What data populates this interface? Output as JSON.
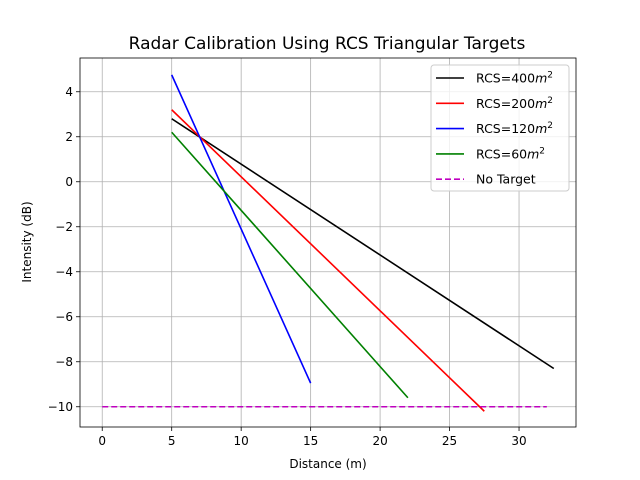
{
  "chart_data": {
    "type": "line",
    "title": "Radar Calibration Using RCS Triangular Targets",
    "xlabel": "Distance (m)",
    "ylabel": "Intensity (dB)",
    "xlim": [
      -1.6,
      34.1
    ],
    "ylim": [
      -10.9,
      5.5
    ],
    "xticks": [
      0,
      5,
      10,
      15,
      20,
      25,
      30
    ],
    "yticks": [
      4,
      2,
      0,
      -2,
      -4,
      -6,
      -8,
      -10
    ],
    "grid": true,
    "legend_position": "top-right",
    "series": [
      {
        "name": "RCS=400",
        "name_sup": "m",
        "name_exp": "2",
        "color": "#000000",
        "dash": "solid",
        "x": [
          5,
          32.5
        ],
        "y": [
          2.8,
          -8.3
        ]
      },
      {
        "name": "RCS=200",
        "name_sup": "m",
        "name_exp": "2",
        "color": "#ff0000",
        "dash": "solid",
        "x": [
          5,
          27.5
        ],
        "y": [
          3.2,
          -10.2
        ]
      },
      {
        "name": "RCS=120",
        "name_sup": "m",
        "name_exp": "2",
        "color": "#0000ff",
        "dash": "solid",
        "x": [
          5,
          15
        ],
        "y": [
          4.75,
          -8.95
        ]
      },
      {
        "name": "RCS=60",
        "name_sup": "m",
        "name_exp": "2",
        "color": "#008000",
        "dash": "solid",
        "x": [
          5,
          22
        ],
        "y": [
          2.2,
          -9.6
        ]
      },
      {
        "name": "No Target",
        "name_sup": "",
        "name_exp": "",
        "color": "#bf00bf",
        "dash": "dashed",
        "x": [
          0,
          32
        ],
        "y": [
          -10,
          -10
        ]
      }
    ]
  }
}
